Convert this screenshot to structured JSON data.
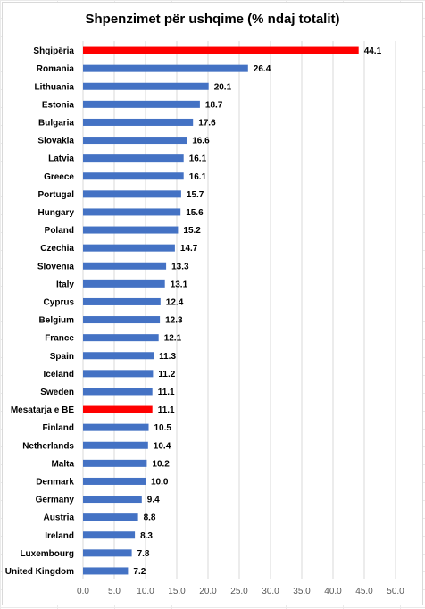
{
  "chart_data": {
    "type": "bar",
    "orientation": "horizontal",
    "title": "Shpenzimet për ushqime (% ndaj totalit)",
    "categories": [
      "Shqipëria",
      "Romania",
      "Lithuania",
      "Estonia",
      "Bulgaria",
      "Slovakia",
      "Latvia",
      "Greece",
      "Portugal",
      "Hungary",
      "Poland",
      "Czechia",
      "Slovenia",
      "Italy",
      "Cyprus",
      "Belgium",
      "France",
      "Spain",
      "Iceland",
      "Sweden",
      "Mesatarja e BE",
      "Finland",
      "Netherlands",
      "Malta",
      "Denmark",
      "Germany",
      "Austria",
      "Ireland",
      "Luxembourg",
      "United Kingdom"
    ],
    "values": [
      44.1,
      26.4,
      20.1,
      18.7,
      17.6,
      16.6,
      16.1,
      16.1,
      15.7,
      15.6,
      15.2,
      14.7,
      13.3,
      13.1,
      12.4,
      12.3,
      12.1,
      11.3,
      11.2,
      11.1,
      11.1,
      10.5,
      10.4,
      10.2,
      10.0,
      9.4,
      8.8,
      8.3,
      7.8,
      7.2
    ],
    "value_labels": [
      "44.1",
      "26.4",
      "20.1",
      "18.7",
      "17.6",
      "16.6",
      "16.1",
      "16.1",
      "15.7",
      "15.6",
      "15.2",
      "14.7",
      "13.3",
      "13.1",
      "12.4",
      "12.3",
      "12.1",
      "11.3",
      "11.2",
      "11.1",
      "11.1",
      "10.5",
      "10.4",
      "10.2",
      "10.0",
      "9.4",
      "8.8",
      "8.3",
      "7.8",
      "7.2"
    ],
    "highlighted": [
      "Shqipëria",
      "Mesatarja e BE"
    ],
    "xlim": [
      0,
      50
    ],
    "xticks": [
      "0.0",
      "5.0",
      "10.0",
      "15.0",
      "20.0",
      "25.0",
      "30.0",
      "35.0",
      "40.0",
      "45.0",
      "50.0"
    ],
    "grid": "vertical",
    "legend": "none",
    "colors": {
      "bar": "#4472c4",
      "highlight": "#ff0000",
      "grid": "#d9d9d9"
    }
  }
}
